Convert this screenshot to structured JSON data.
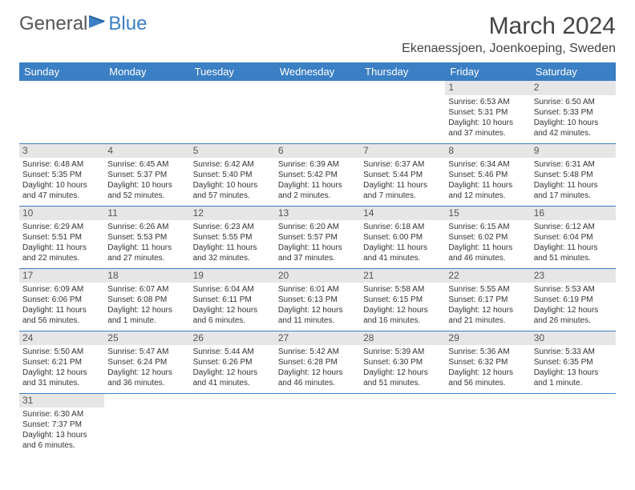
{
  "logo": {
    "part1": "General",
    "part2": "Blue"
  },
  "title": "March 2024",
  "location": "Ekenaessjoen, Joenkoeping, Sweden",
  "columns": [
    "Sunday",
    "Monday",
    "Tuesday",
    "Wednesday",
    "Thursday",
    "Friday",
    "Saturday"
  ],
  "colors": {
    "header_bg": "#3b7fc4",
    "header_text": "#ffffff",
    "daynum_bg": "#e6e6e6",
    "border": "#3b7fc4",
    "text": "#333333",
    "background": "#ffffff"
  },
  "typography": {
    "title_fontsize": 30,
    "location_fontsize": 16,
    "header_fontsize": 13,
    "cell_fontsize": 10,
    "daynum_fontsize": 12
  },
  "weeks": [
    [
      null,
      null,
      null,
      null,
      null,
      {
        "day": "1",
        "sunrise": "Sunrise: 6:53 AM",
        "sunset": "Sunset: 5:31 PM",
        "daylight1": "Daylight: 10 hours",
        "daylight2": "and 37 minutes."
      },
      {
        "day": "2",
        "sunrise": "Sunrise: 6:50 AM",
        "sunset": "Sunset: 5:33 PM",
        "daylight1": "Daylight: 10 hours",
        "daylight2": "and 42 minutes."
      }
    ],
    [
      {
        "day": "3",
        "sunrise": "Sunrise: 6:48 AM",
        "sunset": "Sunset: 5:35 PM",
        "daylight1": "Daylight: 10 hours",
        "daylight2": "and 47 minutes."
      },
      {
        "day": "4",
        "sunrise": "Sunrise: 6:45 AM",
        "sunset": "Sunset: 5:37 PM",
        "daylight1": "Daylight: 10 hours",
        "daylight2": "and 52 minutes."
      },
      {
        "day": "5",
        "sunrise": "Sunrise: 6:42 AM",
        "sunset": "Sunset: 5:40 PM",
        "daylight1": "Daylight: 10 hours",
        "daylight2": "and 57 minutes."
      },
      {
        "day": "6",
        "sunrise": "Sunrise: 6:39 AM",
        "sunset": "Sunset: 5:42 PM",
        "daylight1": "Daylight: 11 hours",
        "daylight2": "and 2 minutes."
      },
      {
        "day": "7",
        "sunrise": "Sunrise: 6:37 AM",
        "sunset": "Sunset: 5:44 PM",
        "daylight1": "Daylight: 11 hours",
        "daylight2": "and 7 minutes."
      },
      {
        "day": "8",
        "sunrise": "Sunrise: 6:34 AM",
        "sunset": "Sunset: 5:46 PM",
        "daylight1": "Daylight: 11 hours",
        "daylight2": "and 12 minutes."
      },
      {
        "day": "9",
        "sunrise": "Sunrise: 6:31 AM",
        "sunset": "Sunset: 5:48 PM",
        "daylight1": "Daylight: 11 hours",
        "daylight2": "and 17 minutes."
      }
    ],
    [
      {
        "day": "10",
        "sunrise": "Sunrise: 6:29 AM",
        "sunset": "Sunset: 5:51 PM",
        "daylight1": "Daylight: 11 hours",
        "daylight2": "and 22 minutes."
      },
      {
        "day": "11",
        "sunrise": "Sunrise: 6:26 AM",
        "sunset": "Sunset: 5:53 PM",
        "daylight1": "Daylight: 11 hours",
        "daylight2": "and 27 minutes."
      },
      {
        "day": "12",
        "sunrise": "Sunrise: 6:23 AM",
        "sunset": "Sunset: 5:55 PM",
        "daylight1": "Daylight: 11 hours",
        "daylight2": "and 32 minutes."
      },
      {
        "day": "13",
        "sunrise": "Sunrise: 6:20 AM",
        "sunset": "Sunset: 5:57 PM",
        "daylight1": "Daylight: 11 hours",
        "daylight2": "and 37 minutes."
      },
      {
        "day": "14",
        "sunrise": "Sunrise: 6:18 AM",
        "sunset": "Sunset: 6:00 PM",
        "daylight1": "Daylight: 11 hours",
        "daylight2": "and 41 minutes."
      },
      {
        "day": "15",
        "sunrise": "Sunrise: 6:15 AM",
        "sunset": "Sunset: 6:02 PM",
        "daylight1": "Daylight: 11 hours",
        "daylight2": "and 46 minutes."
      },
      {
        "day": "16",
        "sunrise": "Sunrise: 6:12 AM",
        "sunset": "Sunset: 6:04 PM",
        "daylight1": "Daylight: 11 hours",
        "daylight2": "and 51 minutes."
      }
    ],
    [
      {
        "day": "17",
        "sunrise": "Sunrise: 6:09 AM",
        "sunset": "Sunset: 6:06 PM",
        "daylight1": "Daylight: 11 hours",
        "daylight2": "and 56 minutes."
      },
      {
        "day": "18",
        "sunrise": "Sunrise: 6:07 AM",
        "sunset": "Sunset: 6:08 PM",
        "daylight1": "Daylight: 12 hours",
        "daylight2": "and 1 minute."
      },
      {
        "day": "19",
        "sunrise": "Sunrise: 6:04 AM",
        "sunset": "Sunset: 6:11 PM",
        "daylight1": "Daylight: 12 hours",
        "daylight2": "and 6 minutes."
      },
      {
        "day": "20",
        "sunrise": "Sunrise: 6:01 AM",
        "sunset": "Sunset: 6:13 PM",
        "daylight1": "Daylight: 12 hours",
        "daylight2": "and 11 minutes."
      },
      {
        "day": "21",
        "sunrise": "Sunrise: 5:58 AM",
        "sunset": "Sunset: 6:15 PM",
        "daylight1": "Daylight: 12 hours",
        "daylight2": "and 16 minutes."
      },
      {
        "day": "22",
        "sunrise": "Sunrise: 5:55 AM",
        "sunset": "Sunset: 6:17 PM",
        "daylight1": "Daylight: 12 hours",
        "daylight2": "and 21 minutes."
      },
      {
        "day": "23",
        "sunrise": "Sunrise: 5:53 AM",
        "sunset": "Sunset: 6:19 PM",
        "daylight1": "Daylight: 12 hours",
        "daylight2": "and 26 minutes."
      }
    ],
    [
      {
        "day": "24",
        "sunrise": "Sunrise: 5:50 AM",
        "sunset": "Sunset: 6:21 PM",
        "daylight1": "Daylight: 12 hours",
        "daylight2": "and 31 minutes."
      },
      {
        "day": "25",
        "sunrise": "Sunrise: 5:47 AM",
        "sunset": "Sunset: 6:24 PM",
        "daylight1": "Daylight: 12 hours",
        "daylight2": "and 36 minutes."
      },
      {
        "day": "26",
        "sunrise": "Sunrise: 5:44 AM",
        "sunset": "Sunset: 6:26 PM",
        "daylight1": "Daylight: 12 hours",
        "daylight2": "and 41 minutes."
      },
      {
        "day": "27",
        "sunrise": "Sunrise: 5:42 AM",
        "sunset": "Sunset: 6:28 PM",
        "daylight1": "Daylight: 12 hours",
        "daylight2": "and 46 minutes."
      },
      {
        "day": "28",
        "sunrise": "Sunrise: 5:39 AM",
        "sunset": "Sunset: 6:30 PM",
        "daylight1": "Daylight: 12 hours",
        "daylight2": "and 51 minutes."
      },
      {
        "day": "29",
        "sunrise": "Sunrise: 5:36 AM",
        "sunset": "Sunset: 6:32 PM",
        "daylight1": "Daylight: 12 hours",
        "daylight2": "and 56 minutes."
      },
      {
        "day": "30",
        "sunrise": "Sunrise: 5:33 AM",
        "sunset": "Sunset: 6:35 PM",
        "daylight1": "Daylight: 13 hours",
        "daylight2": "and 1 minute."
      }
    ],
    [
      {
        "day": "31",
        "sunrise": "Sunrise: 6:30 AM",
        "sunset": "Sunset: 7:37 PM",
        "daylight1": "Daylight: 13 hours",
        "daylight2": "and 6 minutes."
      },
      null,
      null,
      null,
      null,
      null,
      null
    ]
  ]
}
